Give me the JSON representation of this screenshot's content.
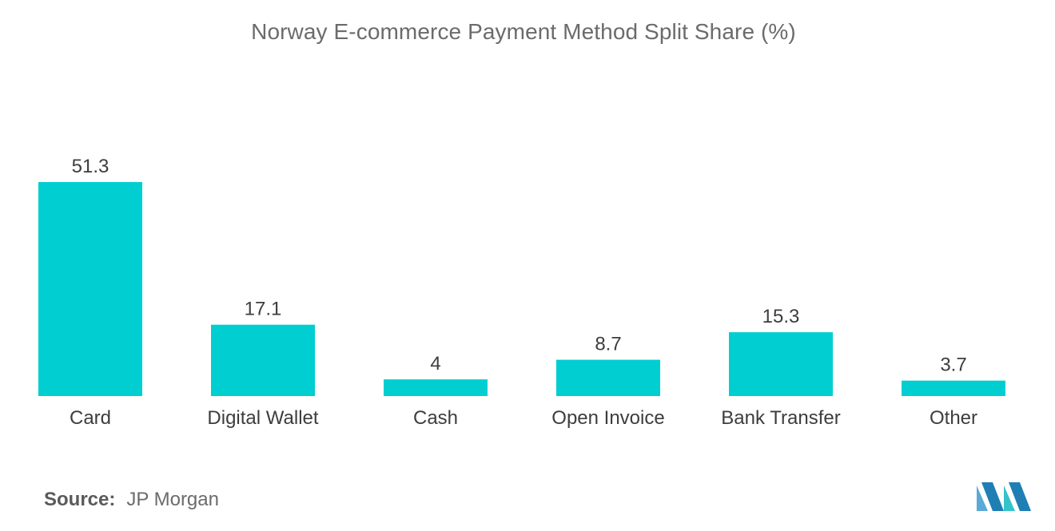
{
  "chart_data": {
    "type": "bar",
    "title": "Norway E-commerce Payment Method Split Share (%)",
    "categories": [
      "Card",
      "Digital Wallet",
      "Cash",
      "Open Invoice",
      "Bank Transfer",
      "Other"
    ],
    "values": [
      51.3,
      17.1,
      4,
      8.7,
      15.3,
      3.7
    ],
    "value_labels": [
      "51.3",
      "17.1",
      "4",
      "8.7",
      "15.3",
      "3.7"
    ],
    "xlabel": "",
    "ylabel": "",
    "ylim": [
      0,
      51.3
    ],
    "grid": false,
    "legend": "none",
    "bar_color": "#00ced1"
  },
  "source": {
    "label": "Source:",
    "value": "JP Morgan"
  },
  "logo": {
    "icon": "mordor-intelligence-logo-icon",
    "colors": [
      "#5aa9d6",
      "#1f7fb4",
      "#33c3c9"
    ]
  }
}
